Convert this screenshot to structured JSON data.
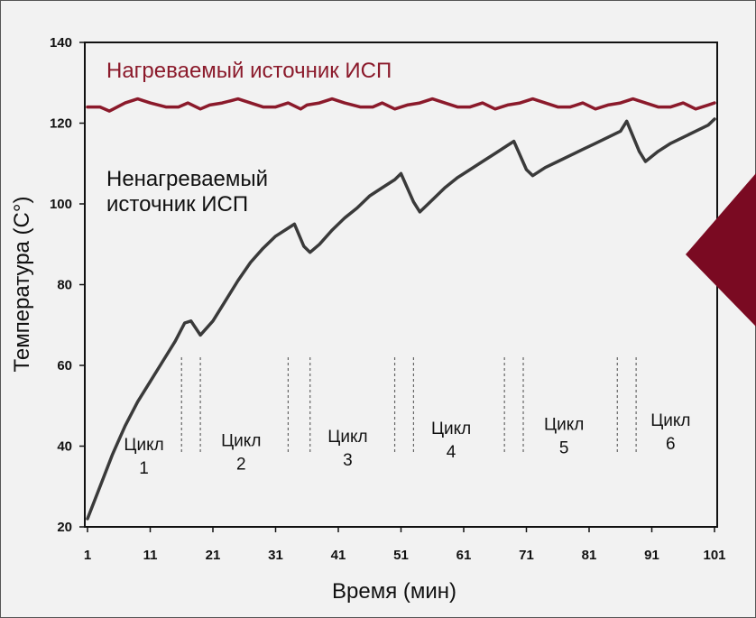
{
  "chart_data": {
    "type": "line",
    "xlabel": "Время (мин)",
    "ylabel": "Температура (С°)",
    "xlim": [
      1,
      102
    ],
    "ylim": [
      20,
      140
    ],
    "x_ticks": [
      1,
      11,
      21,
      31,
      41,
      51,
      61,
      71,
      81,
      91,
      101
    ],
    "y_ticks": [
      20,
      40,
      60,
      80,
      100,
      120,
      140
    ],
    "grid": false,
    "series": [
      {
        "name": "Нагреваемый источник ИСП",
        "color": "#8b1a2b",
        "x": [
          1,
          3,
          4.5,
          7,
          9,
          11,
          13.5,
          15.5,
          17,
          19,
          20.5,
          22.5,
          25,
          27,
          29,
          31,
          33,
          35,
          36,
          38,
          40,
          42,
          44.5,
          46.5,
          48,
          50,
          52,
          54,
          56,
          58,
          60,
          62,
          64,
          66,
          68,
          70,
          72,
          74,
          76,
          78,
          80,
          82,
          84,
          86,
          88,
          90,
          92,
          94,
          96,
          98,
          100,
          101
        ],
        "y": [
          124,
          124,
          123,
          125,
          126,
          125,
          124,
          124,
          125,
          123.5,
          124.5,
          125,
          126,
          125,
          124,
          124,
          125,
          123.5,
          124.5,
          125,
          126,
          125,
          124,
          124,
          125,
          123.5,
          124.5,
          125,
          126,
          125,
          124,
          124,
          125,
          123.5,
          124.5,
          125,
          126,
          125,
          124,
          124,
          125,
          123.5,
          124.5,
          125,
          126,
          125,
          124,
          124,
          125,
          123.5,
          124.5,
          125
        ]
      },
      {
        "name": "Ненагреваемый источник ИСП",
        "color": "#3a3a3a",
        "x": [
          1,
          3,
          5,
          7,
          9,
          11,
          13,
          15,
          16.5,
          17.5,
          19,
          21,
          23,
          25,
          27,
          29,
          31,
          33,
          34,
          35.5,
          36.5,
          38,
          40,
          42,
          44,
          46,
          48,
          50,
          51,
          53,
          54,
          56,
          58,
          60,
          62,
          64,
          66,
          68,
          69,
          71,
          72,
          74,
          76,
          78,
          80,
          82,
          84,
          86,
          87,
          89,
          90,
          92,
          94,
          96,
          98,
          100,
          101
        ],
        "y": [
          22,
          30,
          38,
          45,
          51,
          56,
          61,
          66,
          70.5,
          71,
          67.5,
          71,
          76,
          81,
          85.5,
          89,
          92,
          94,
          95,
          89.5,
          88,
          90,
          93.5,
          96.5,
          99,
          102,
          104,
          106,
          107.5,
          100.5,
          98,
          101,
          104,
          106.5,
          108.5,
          110.5,
          112.5,
          114.5,
          115.5,
          108.5,
          107,
          109,
          110.5,
          112,
          113.5,
          115,
          116.5,
          118,
          120.5,
          113,
          110.5,
          113,
          115,
          116.5,
          118,
          119.5,
          121
        ]
      }
    ],
    "cycle_markers": [
      [
        16,
        19
      ],
      [
        33,
        36.5
      ],
      [
        50,
        53
      ],
      [
        67.5,
        70.5
      ],
      [
        85.5,
        88.5
      ]
    ],
    "cycles": [
      {
        "word": "Цикл",
        "number": "1",
        "x": 10,
        "y": 39
      },
      {
        "word": "Цикл",
        "number": "2",
        "x": 25.5,
        "y": 40
      },
      {
        "word": "Цикл",
        "number": "3",
        "x": 42.5,
        "y": 41
      },
      {
        "word": "Цикл",
        "number": "4",
        "x": 59,
        "y": 43
      },
      {
        "word": "Цикл",
        "number": "5",
        "x": 77,
        "y": 44
      },
      {
        "word": "Цикл",
        "number": "6",
        "x": 94,
        "y": 45
      }
    ]
  },
  "labels": {
    "heated_series": "Нагреваемый источник ИСП",
    "unheated_series_line1": "Ненагреваемый",
    "unheated_series_line2": "источник ИСП"
  },
  "colors": {
    "accent": "#7a0a22",
    "heated": "#8b1a2b",
    "unheated": "#3a3a3a"
  }
}
